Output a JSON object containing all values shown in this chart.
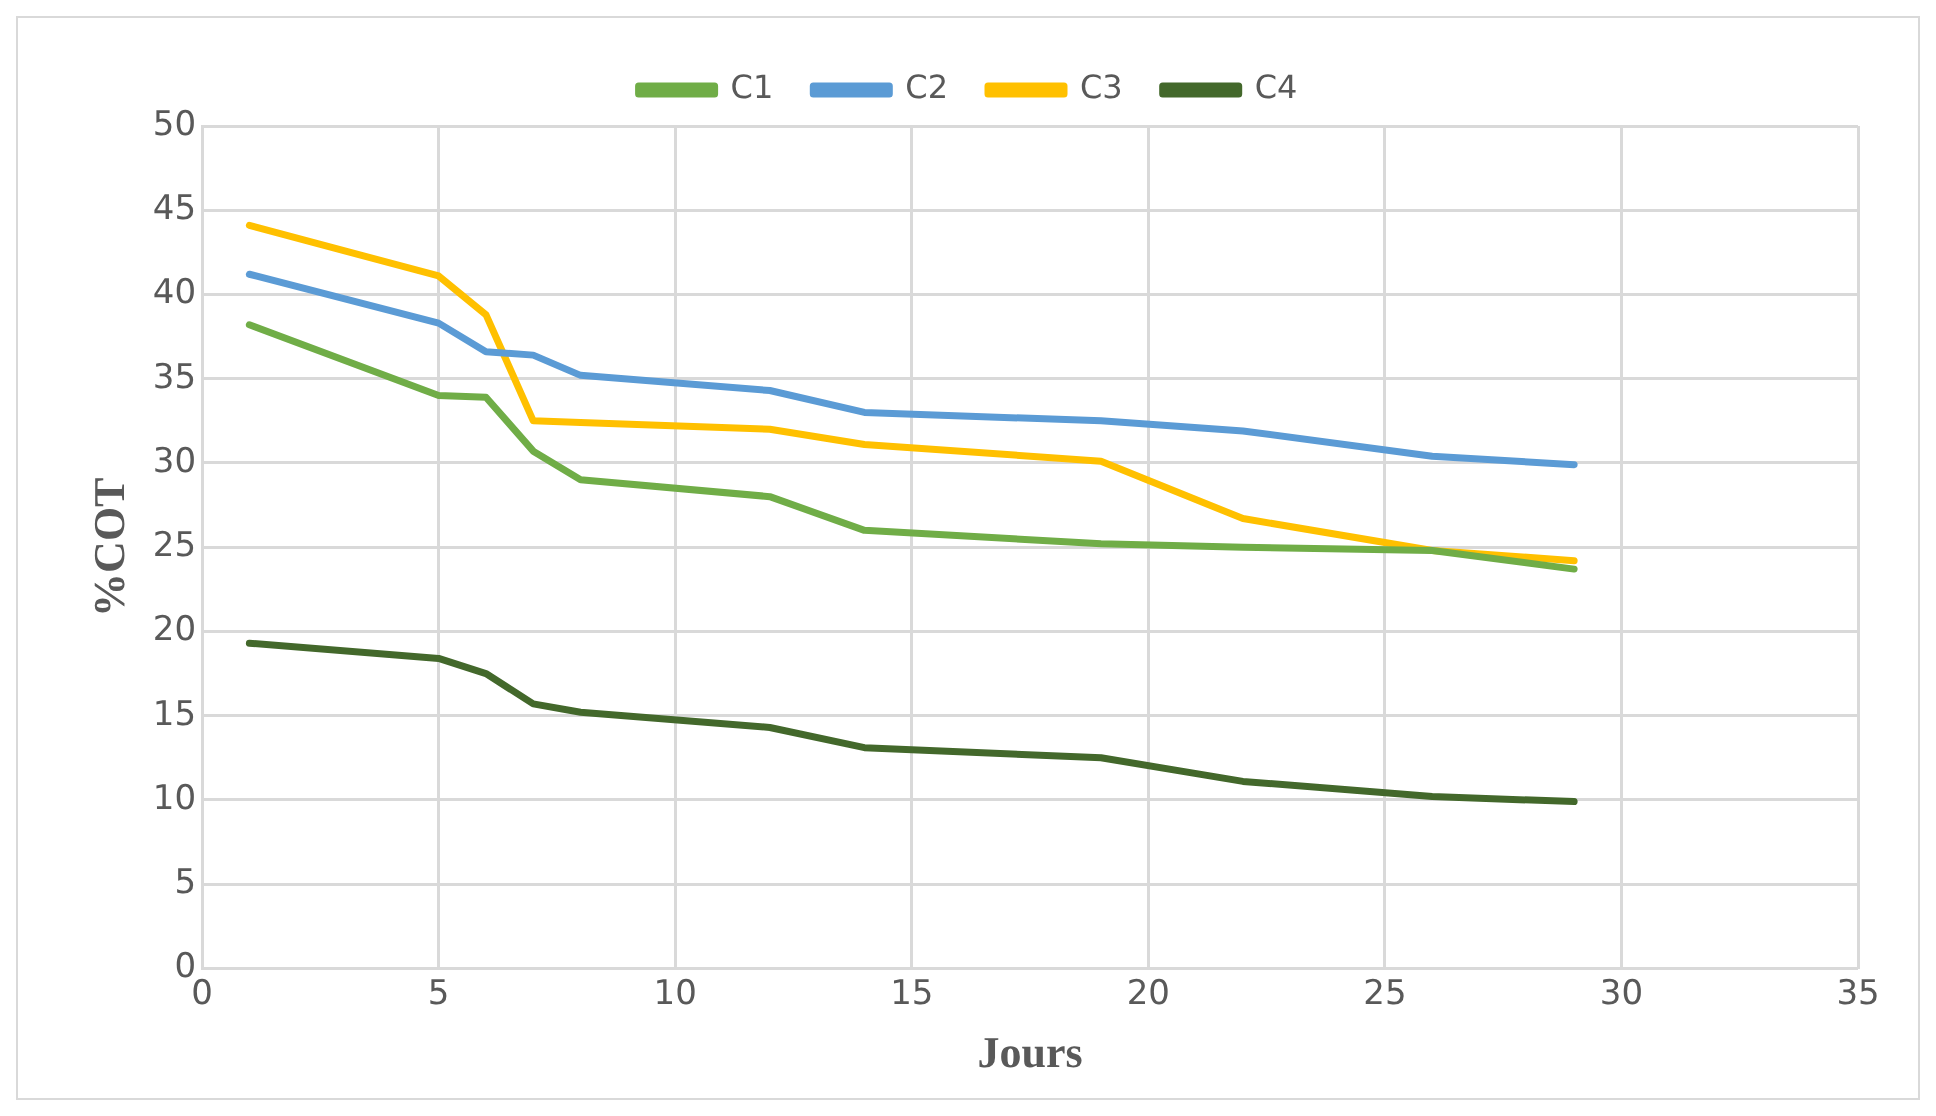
{
  "chart_data": {
    "type": "line",
    "xlabel": "Jours",
    "ylabel": "%COT",
    "x": [
      1,
      5,
      6,
      7,
      8,
      12,
      14,
      19,
      22,
      26,
      29
    ],
    "series": [
      {
        "name": "C1",
        "color": "#70ad47",
        "values": [
          38.2,
          34,
          33.9,
          30.7,
          29,
          28,
          26,
          25.2,
          25,
          24.8,
          23.7
        ]
      },
      {
        "name": "C2",
        "color": "#5b9bd5",
        "values": [
          41.2,
          38.3,
          36.6,
          36.4,
          35.2,
          34.3,
          33,
          32.5,
          31.9,
          30.4,
          29.9
        ]
      },
      {
        "name": "C3",
        "color": "#ffc000",
        "values": [
          44.1,
          41.1,
          38.8,
          32.5,
          32.4,
          32,
          31.1,
          30.1,
          26.7,
          24.8,
          24.2
        ]
      },
      {
        "name": "C4",
        "color": "#43682b",
        "values": [
          19.3,
          18.4,
          17.5,
          15.7,
          15.2,
          14.3,
          13.1,
          12.5,
          11.1,
          10.2,
          9.9
        ]
      }
    ],
    "xlim": [
      0,
      35
    ],
    "xticks": [
      0,
      5,
      10,
      15,
      20,
      25,
      30,
      35
    ],
    "ylim": [
      0,
      50
    ],
    "yticks": [
      0,
      5,
      10,
      15,
      20,
      25,
      30,
      35,
      40,
      45,
      50
    ],
    "grid": true,
    "legend": "top",
    "marker": "none",
    "line_style": "solid"
  }
}
